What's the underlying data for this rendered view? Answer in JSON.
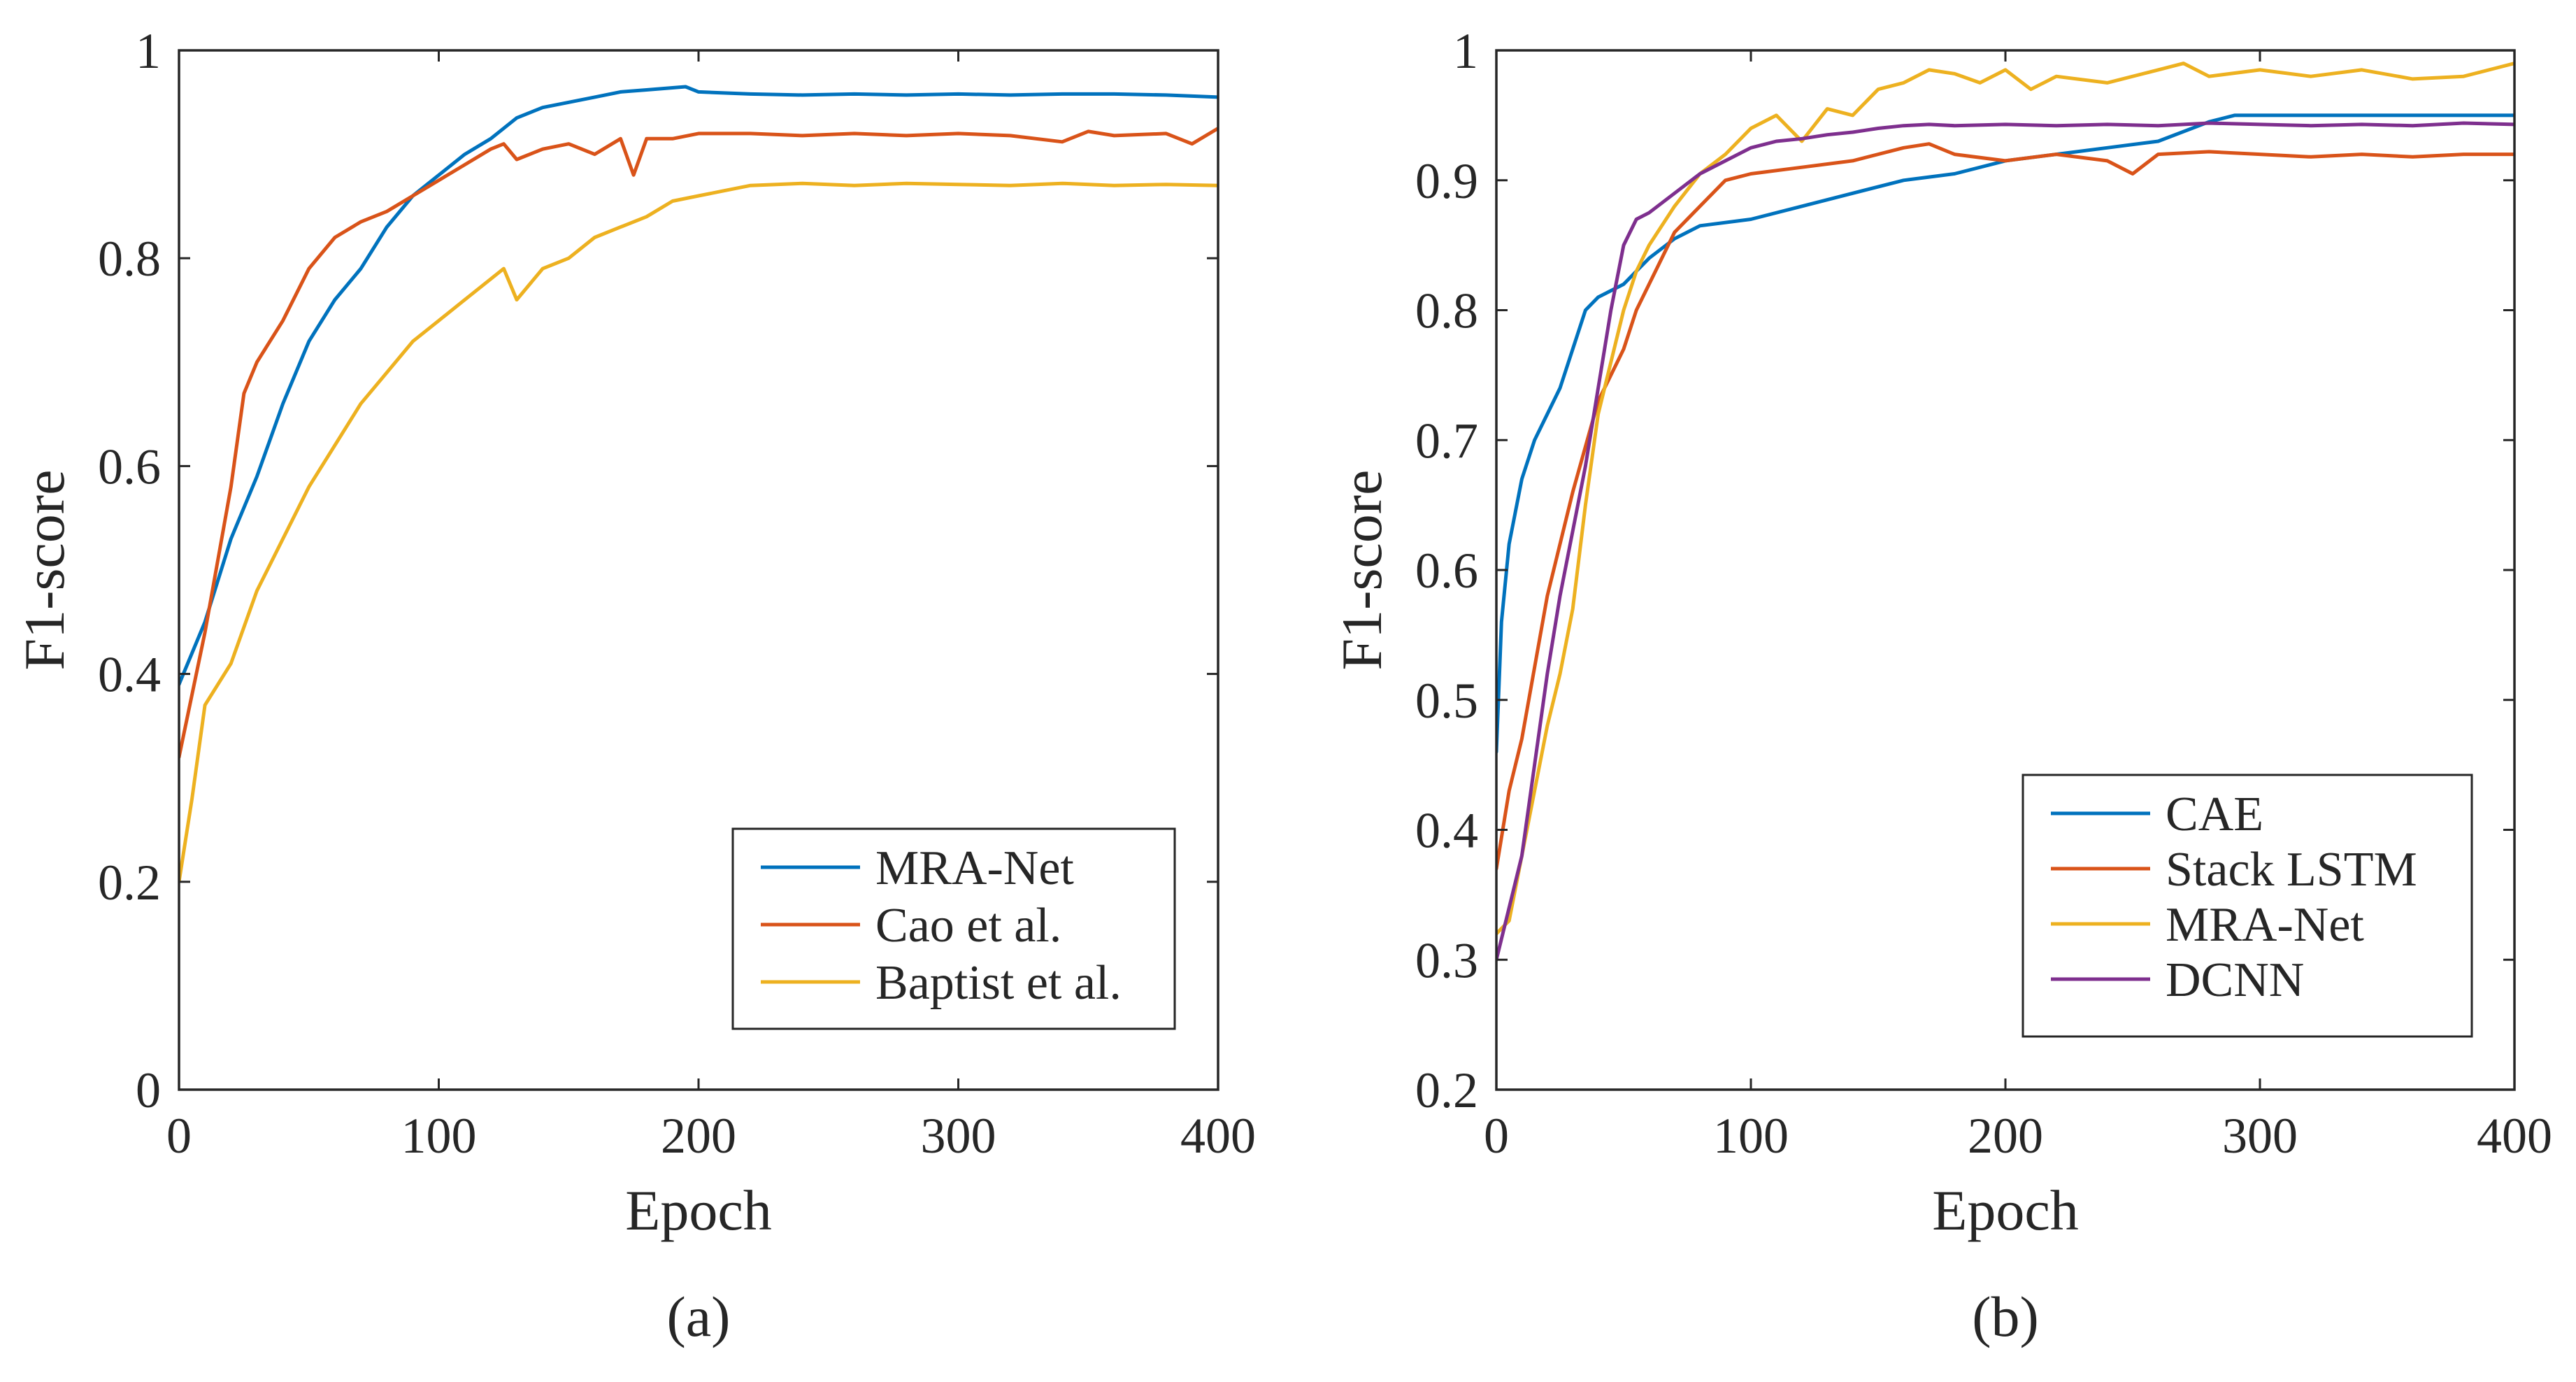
{
  "colors": {
    "blue": "#0072BD",
    "orange": "#D95319",
    "yellow": "#EDB120",
    "purple": "#7E2F8E",
    "axis": "#262626",
    "background": "#FFFFFF"
  },
  "chart_data": [
    {
      "type": "line",
      "caption": "(a)",
      "xlabel": "Epoch",
      "ylabel": "F1-score",
      "xlim": [
        0,
        400
      ],
      "ylim": [
        0,
        1
      ],
      "xticks": [
        0,
        100,
        200,
        300,
        400
      ],
      "xtick_labels": [
        "0",
        "100",
        "200",
        "300",
        "400"
      ],
      "yticks": [
        0,
        0.2,
        0.4,
        0.6,
        0.8,
        1
      ],
      "ytick_labels": [
        "0",
        "0.2",
        "0.4",
        "0.6",
        "0.8",
        "1"
      ],
      "grid": false,
      "legend_position": "bottom-right",
      "series": [
        {
          "name": "MRA-Net",
          "color": "#0072BD",
          "x": [
            0,
            10,
            20,
            30,
            40,
            50,
            60,
            70,
            80,
            90,
            100,
            110,
            120,
            130,
            140,
            150,
            160,
            170,
            180,
            190,
            195,
            200,
            220,
            240,
            260,
            280,
            300,
            320,
            340,
            360,
            380,
            400
          ],
          "y": [
            0.39,
            0.45,
            0.53,
            0.59,
            0.66,
            0.72,
            0.76,
            0.79,
            0.83,
            0.86,
            0.88,
            0.9,
            0.915,
            0.935,
            0.945,
            0.95,
            0.955,
            0.96,
            0.962,
            0.964,
            0.965,
            0.96,
            0.958,
            0.957,
            0.958,
            0.957,
            0.958,
            0.957,
            0.958,
            0.958,
            0.957,
            0.955
          ]
        },
        {
          "name": "Cao et al.",
          "color": "#D95319",
          "x": [
            0,
            10,
            20,
            25,
            30,
            40,
            50,
            60,
            70,
            80,
            90,
            100,
            110,
            120,
            125,
            130,
            140,
            150,
            160,
            170,
            175,
            180,
            190,
            200,
            220,
            240,
            260,
            280,
            300,
            320,
            340,
            350,
            360,
            380,
            390,
            400
          ],
          "y": [
            0.32,
            0.44,
            0.58,
            0.67,
            0.7,
            0.74,
            0.79,
            0.82,
            0.835,
            0.845,
            0.86,
            0.875,
            0.89,
            0.905,
            0.91,
            0.895,
            0.905,
            0.91,
            0.9,
            0.915,
            0.88,
            0.915,
            0.915,
            0.92,
            0.92,
            0.918,
            0.92,
            0.918,
            0.92,
            0.918,
            0.912,
            0.922,
            0.918,
            0.92,
            0.91,
            0.925
          ]
        },
        {
          "name": "Baptist et al.",
          "color": "#EDB120",
          "x": [
            0,
            5,
            10,
            20,
            30,
            40,
            50,
            60,
            70,
            80,
            90,
            100,
            110,
            120,
            125,
            130,
            140,
            150,
            160,
            170,
            180,
            190,
            200,
            210,
            220,
            240,
            260,
            280,
            300,
            320,
            340,
            360,
            380,
            400
          ],
          "y": [
            0.2,
            0.28,
            0.37,
            0.41,
            0.48,
            0.53,
            0.58,
            0.62,
            0.66,
            0.69,
            0.72,
            0.74,
            0.76,
            0.78,
            0.79,
            0.76,
            0.79,
            0.8,
            0.82,
            0.83,
            0.84,
            0.855,
            0.86,
            0.865,
            0.87,
            0.872,
            0.87,
            0.872,
            0.871,
            0.87,
            0.872,
            0.87,
            0.871,
            0.87
          ]
        }
      ]
    },
    {
      "type": "line",
      "caption": "(b)",
      "xlabel": "Epoch",
      "ylabel": "F1-score",
      "xlim": [
        0,
        400
      ],
      "ylim": [
        0.2,
        1
      ],
      "xticks": [
        0,
        100,
        200,
        300,
        400
      ],
      "xtick_labels": [
        "0",
        "100",
        "200",
        "300",
        "400"
      ],
      "yticks": [
        0.2,
        0.3,
        0.4,
        0.5,
        0.6,
        0.7,
        0.8,
        0.9,
        1
      ],
      "ytick_labels": [
        "0.2",
        "0.3",
        "0.4",
        "0.5",
        "0.6",
        "0.7",
        "0.8",
        "0.9",
        "1"
      ],
      "grid": false,
      "legend_position": "bottom-right",
      "series": [
        {
          "name": "CAE",
          "color": "#0072BD",
          "x": [
            0,
            2,
            5,
            10,
            15,
            20,
            25,
            30,
            35,
            40,
            45,
            50,
            55,
            60,
            70,
            80,
            100,
            120,
            140,
            160,
            180,
            200,
            220,
            240,
            260,
            280,
            290,
            300,
            320,
            340,
            360,
            380,
            400
          ],
          "y": [
            0.46,
            0.56,
            0.62,
            0.67,
            0.7,
            0.72,
            0.74,
            0.77,
            0.8,
            0.81,
            0.815,
            0.82,
            0.83,
            0.84,
            0.855,
            0.865,
            0.87,
            0.88,
            0.89,
            0.9,
            0.905,
            0.915,
            0.92,
            0.925,
            0.93,
            0.945,
            0.95,
            0.95,
            0.95,
            0.95,
            0.95,
            0.95,
            0.95
          ]
        },
        {
          "name": "Stack LSTM",
          "color": "#D95319",
          "x": [
            0,
            5,
            10,
            20,
            30,
            40,
            50,
            55,
            60,
            70,
            80,
            90,
            100,
            120,
            140,
            160,
            170,
            180,
            200,
            220,
            240,
            250,
            260,
            280,
            300,
            320,
            340,
            360,
            380,
            400
          ],
          "y": [
            0.37,
            0.43,
            0.47,
            0.58,
            0.66,
            0.73,
            0.77,
            0.8,
            0.82,
            0.86,
            0.88,
            0.9,
            0.905,
            0.91,
            0.915,
            0.925,
            0.928,
            0.92,
            0.915,
            0.92,
            0.915,
            0.905,
            0.92,
            0.922,
            0.92,
            0.918,
            0.92,
            0.918,
            0.92,
            0.92
          ]
        },
        {
          "name": "MRA-Net",
          "color": "#EDB120",
          "x": [
            0,
            5,
            10,
            20,
            25,
            30,
            35,
            40,
            45,
            50,
            55,
            60,
            70,
            80,
            90,
            100,
            110,
            120,
            130,
            140,
            150,
            160,
            170,
            180,
            190,
            200,
            210,
            220,
            240,
            260,
            270,
            280,
            300,
            320,
            340,
            360,
            380,
            400
          ],
          "y": [
            0.32,
            0.33,
            0.38,
            0.48,
            0.52,
            0.57,
            0.65,
            0.72,
            0.76,
            0.8,
            0.83,
            0.85,
            0.88,
            0.905,
            0.92,
            0.94,
            0.95,
            0.93,
            0.955,
            0.95,
            0.97,
            0.975,
            0.985,
            0.982,
            0.975,
            0.985,
            0.97,
            0.98,
            0.975,
            0.985,
            0.99,
            0.98,
            0.985,
            0.98,
            0.985,
            0.978,
            0.98,
            0.99
          ]
        },
        {
          "name": "DCNN",
          "color": "#7E2F8E",
          "x": [
            0,
            5,
            10,
            15,
            20,
            25,
            30,
            35,
            40,
            45,
            50,
            55,
            60,
            70,
            80,
            90,
            100,
            110,
            120,
            130,
            140,
            150,
            160,
            170,
            180,
            200,
            220,
            240,
            260,
            280,
            300,
            320,
            340,
            360,
            380,
            400
          ],
          "y": [
            0.3,
            0.34,
            0.38,
            0.45,
            0.52,
            0.58,
            0.63,
            0.68,
            0.74,
            0.8,
            0.85,
            0.87,
            0.875,
            0.89,
            0.905,
            0.915,
            0.925,
            0.93,
            0.932,
            0.935,
            0.937,
            0.94,
            0.942,
            0.943,
            0.942,
            0.943,
            0.942,
            0.943,
            0.942,
            0.944,
            0.943,
            0.942,
            0.943,
            0.942,
            0.944,
            0.943
          ]
        }
      ]
    }
  ]
}
